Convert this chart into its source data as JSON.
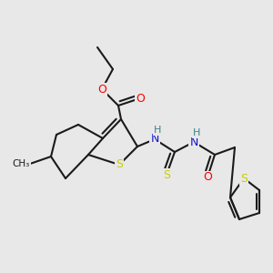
{
  "bg_color": "#e8e8e8",
  "bond_color": "#1a1a1a",
  "bond_lw": 1.5,
  "atom_colors": {
    "O": "#ff0000",
    "S": "#cccc00",
    "N": "#1515cc",
    "H": "#3a8585",
    "C": "#1a1a1a"
  }
}
